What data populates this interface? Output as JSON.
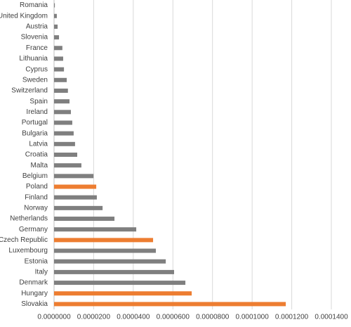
{
  "chart_data": {
    "type": "bar",
    "orientation": "horizontal",
    "categories": [
      "Romania",
      "United Kingdom",
      "Austria",
      "Slovenia",
      "France",
      "Lithuania",
      "Cyprus",
      "Sweden",
      "Switzerland",
      "Spain",
      "Ireland",
      "Portugal",
      "Bulgaria",
      "Latvia",
      "Croatia",
      "Malta",
      "Belgium",
      "Poland",
      "Finland",
      "Norway",
      "Netherlands",
      "Germany",
      "Czech Republic",
      "Luxembourg",
      "Estonia",
      "Italy",
      "Denmark",
      "Hungary",
      "Slovakia"
    ],
    "values": [
      4e-07,
      1.4e-06,
      1.8e-06,
      2.5e-06,
      4.2e-06,
      4.6e-06,
      5e-06,
      6.4e-06,
      7e-06,
      7.8e-06,
      8.5e-06,
      9.2e-06,
      9.9e-06,
      1.06e-05,
      1.17e-05,
      1.38e-05,
      1.99e-05,
      2.13e-05,
      2.16e-05,
      2.45e-05,
      3.05e-05,
      4.15e-05,
      5e-05,
      5.14e-05,
      5.64e-05,
      6.06e-05,
      6.63e-05,
      6.95e-05,
      0.000117
    ],
    "colors": [
      "#7f7f7f",
      "#7f7f7f",
      "#7f7f7f",
      "#7f7f7f",
      "#7f7f7f",
      "#7f7f7f",
      "#7f7f7f",
      "#7f7f7f",
      "#7f7f7f",
      "#7f7f7f",
      "#7f7f7f",
      "#7f7f7f",
      "#7f7f7f",
      "#7f7f7f",
      "#7f7f7f",
      "#7f7f7f",
      "#7f7f7f",
      "#ed7d31",
      "#7f7f7f",
      "#7f7f7f",
      "#7f7f7f",
      "#7f7f7f",
      "#ed7d31",
      "#7f7f7f",
      "#7f7f7f",
      "#7f7f7f",
      "#7f7f7f",
      "#ed7d31",
      "#ed7d31"
    ],
    "xlim": [
      0,
      0.00014
    ],
    "xticks": [
      {
        "value": 0,
        "label": "0.0000000"
      },
      {
        "value": 2e-05,
        "label": "0.0000200"
      },
      {
        "value": 4e-05,
        "label": "0.0000400"
      },
      {
        "value": 6e-05,
        "label": "0.0000600"
      },
      {
        "value": 8e-05,
        "label": "0.0000800"
      },
      {
        "value": 0.0001,
        "label": "0.0001000"
      },
      {
        "value": 0.00012,
        "label": "0.0001200"
      },
      {
        "value": 0.00014,
        "label": "0.0001400"
      }
    ],
    "grid": true
  }
}
